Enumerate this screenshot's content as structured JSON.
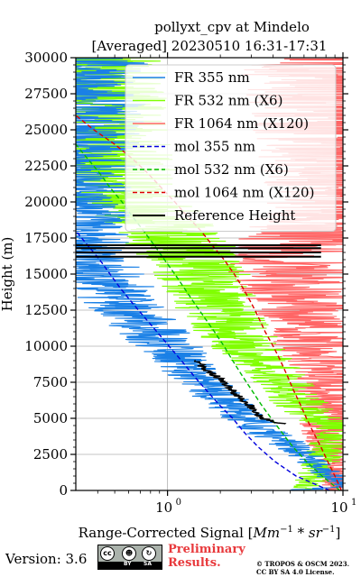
{
  "chart_data": {
    "type": "line",
    "title_line1": "pollyxt_cpv at Mindelo",
    "title_line2": "[Averaged] 20230510 16:31-17:31",
    "xlabel": "Range-Corrected Signal [Mm^-1 * sr^-1]",
    "ylabel": "Height (m)",
    "x_scale": "log",
    "xlim": [
      0.3,
      10
    ],
    "ylim": [
      0,
      30000
    ],
    "x_major_ticks": [
      1,
      10
    ],
    "x_tick_labels": [
      "10^0",
      "10^1"
    ],
    "y_ticks": [
      0,
      2500,
      5000,
      7500,
      10000,
      12500,
      15000,
      17500,
      20000,
      22500,
      25000,
      27500,
      30000
    ],
    "y_tick_labels": [
      "0",
      "2500",
      "5000",
      "7500",
      "10000",
      "12500",
      "15000",
      "17500",
      "20000",
      "22500",
      "25000",
      "27500",
      "30000"
    ],
    "grid": true,
    "legend_position": "top-right",
    "series": [
      {
        "name": "FR 355 nm",
        "color": "#1a80e6",
        "style": "solid",
        "height": [
          0,
          250,
          500,
          750,
          1000,
          1500,
          2000,
          2500,
          3000,
          3500,
          4000,
          4500,
          5000,
          6000,
          7000,
          8000,
          9000,
          10000,
          11000,
          12000,
          13000,
          14000,
          15000,
          16000,
          17000,
          18000,
          20000,
          22000,
          24000,
          26000,
          28000,
          30000
        ],
        "values": [
          5.0,
          9.8,
          9.5,
          8.9,
          8.4,
          7.6,
          6.7,
          5.9,
          5.1,
          4.4,
          3.7,
          3.2,
          2.7,
          2.2,
          1.75,
          1.45,
          1.2,
          1.0,
          0.82,
          0.68,
          0.56,
          0.48,
          0.42,
          0.36,
          0.33,
          0.31,
          0.3,
          0.3,
          0.3,
          0.3,
          0.3,
          0.3
        ]
      },
      {
        "name": "FR 532 nm (X6)",
        "color": "#80ff00",
        "style": "solid",
        "height": [
          0,
          500,
          1000,
          2000,
          3000,
          4000,
          4500,
          5000,
          6000,
          7000,
          8000,
          9000,
          10000,
          11000,
          12000,
          13000,
          14000,
          15000,
          16000,
          17000,
          18000,
          19000,
          20000,
          22000,
          24000,
          26000,
          28000,
          30000
        ],
        "values": [
          6.0,
          6.5,
          6.8,
          7.5,
          8.3,
          9.3,
          9.8,
          7.2,
          5.8,
          4.8,
          4.0,
          3.3,
          2.8,
          2.4,
          2.1,
          1.9,
          1.7,
          1.55,
          1.4,
          1.2,
          1.0,
          0.8,
          0.6,
          0.48,
          0.42,
          0.38,
          0.35,
          0.33
        ]
      },
      {
        "name": "FR 1064 nm (X120)",
        "color": "#ff6666",
        "style": "solid",
        "height": [
          0,
          500,
          1000,
          2000,
          3000,
          4000,
          5000,
          6000,
          7000,
          8000,
          9000,
          10000,
          11000,
          12000,
          13000,
          14000,
          15000,
          16000,
          17000,
          18000,
          20000,
          22000,
          24000,
          26000,
          28000,
          30000
        ],
        "values": [
          9.5,
          9.4,
          9.3,
          9.0,
          8.8,
          8.6,
          8.2,
          8.4,
          8.3,
          8.1,
          7.8,
          7.5,
          7.0,
          6.5,
          6.0,
          5.5,
          5.0,
          4.8,
          5.5,
          7.0,
          9.5,
          9.8,
          9.8,
          9.8,
          9.8,
          9.8
        ]
      },
      {
        "name": "mol 355 nm",
        "color": "#0000dd",
        "style": "dashed",
        "height": [
          0,
          1000,
          2000,
          3000,
          4000,
          5000,
          6000,
          7000,
          8000,
          9000,
          10000,
          11000,
          12000,
          13000,
          14000,
          15000,
          16000,
          17000,
          18000
        ],
        "values": [
          8.4,
          5.4,
          4.1,
          3.3,
          2.75,
          2.35,
          1.95,
          1.65,
          1.4,
          1.2,
          1.02,
          0.87,
          0.74,
          0.63,
          0.54,
          0.47,
          0.41,
          0.35,
          0.3
        ]
      },
      {
        "name": "mol 532 nm (X6)",
        "color": "#00bb00",
        "style": "dashed",
        "height": [
          0,
          1000,
          2000,
          3000,
          4000,
          5000,
          6000,
          7000,
          8000,
          9000,
          10000,
          11000,
          12000,
          13000,
          14000,
          15000,
          16000,
          17000,
          18000,
          19000,
          20000,
          21000,
          22000,
          23000,
          24000
        ],
        "values": [
          9.6,
          7.6,
          6.2,
          5.2,
          4.5,
          3.9,
          3.4,
          3.0,
          2.65,
          2.35,
          2.1,
          1.85,
          1.62,
          1.42,
          1.25,
          1.1,
          0.96,
          0.84,
          0.73,
          0.63,
          0.55,
          0.47,
          0.41,
          0.35,
          0.3
        ]
      },
      {
        "name": "mol 1064 nm (X120)",
        "color": "#dd0000",
        "style": "dashed",
        "height": [
          0,
          1000,
          2000,
          3000,
          4000,
          5000,
          6000,
          7000,
          8000,
          9000,
          10000,
          11000,
          12000,
          13000,
          14000,
          15000,
          16000,
          17000,
          18000,
          19000,
          20000,
          21000,
          22000,
          23000,
          24000,
          25000,
          26000
        ],
        "values": [
          9.8,
          9.0,
          8.2,
          7.5,
          6.8,
          6.2,
          5.7,
          5.2,
          4.8,
          4.4,
          4.0,
          3.6,
          3.3,
          3.0,
          2.7,
          2.4,
          2.1,
          1.8,
          1.55,
          1.3,
          1.1,
          0.92,
          0.77,
          0.63,
          0.5,
          0.38,
          0.3
        ]
      },
      {
        "name": "Reference Height",
        "color": "#000000",
        "style": "solid",
        "height": [
          4600,
          4700,
          4800,
          5000,
          5200,
          5600,
          6000,
          6500,
          7000,
          7500,
          8000,
          8500,
          9000
        ],
        "values": [
          4.6,
          4.3,
          4.0,
          3.5,
          3.3,
          3.1,
          2.85,
          2.55,
          2.3,
          2.1,
          1.85,
          1.6,
          1.45
        ]
      }
    ],
    "reference_band": {
      "color": "#000000",
      "heights": [
        16200,
        16500,
        16800,
        17000
      ],
      "x_range": [
        0.3,
        7.5
      ]
    }
  },
  "footer": {
    "version": "Version: 3.6",
    "license_badge": [
      "cc",
      "BY",
      "SA"
    ],
    "preliminary_line1": "Preliminary",
    "preliminary_line2": "Results.",
    "copyright_line1": "© TROPOS & OSCM 2023.",
    "copyright_line2": "CC BY SA 4.0 License."
  }
}
